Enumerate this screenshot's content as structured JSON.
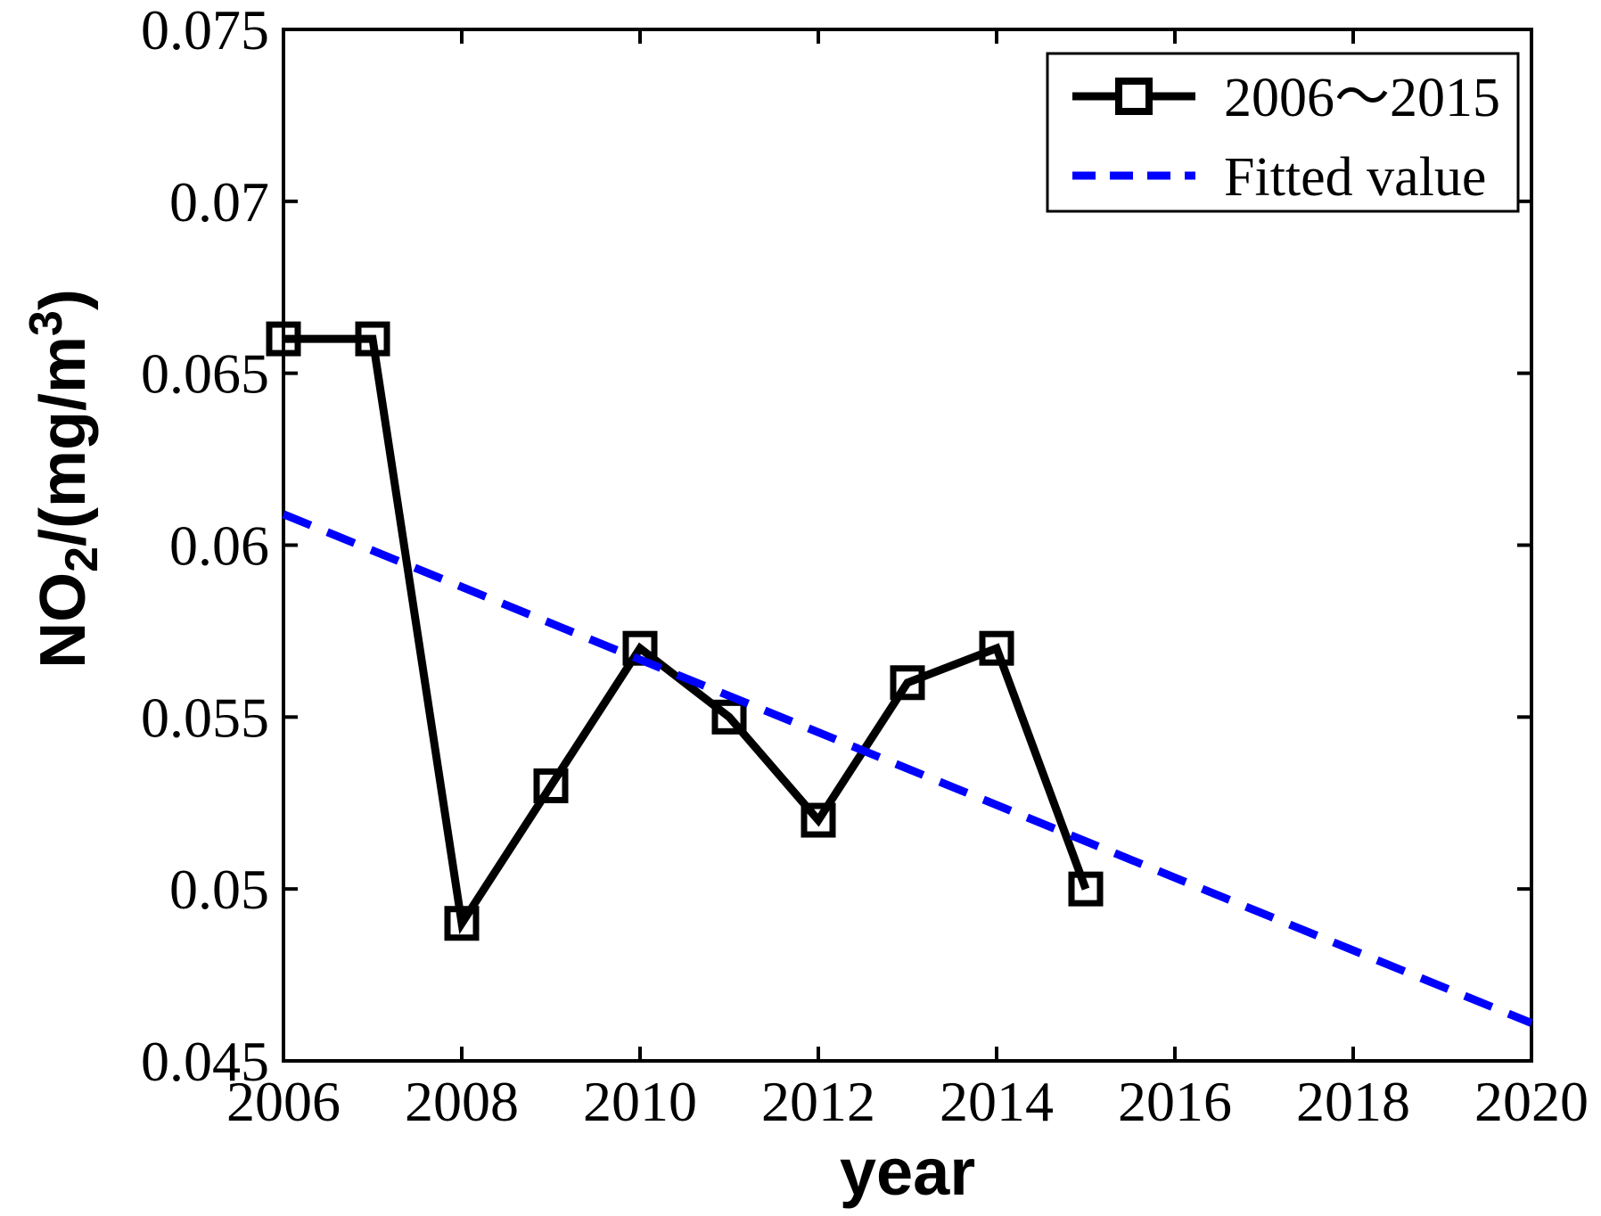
{
  "figure": {
    "background": "#ffffff",
    "axis_color": "#000000"
  },
  "chart_data": {
    "type": "line",
    "title": "",
    "xlabel": "year",
    "ylabel": "NO₂/(mg/m³)",
    "ylabel_parts": {
      "base": "NO",
      "subscript": "2",
      "middle": "/(mg/m",
      "superscript": "3",
      "end": ")"
    },
    "xlim": [
      2006,
      2020
    ],
    "ylim": [
      0.045,
      0.075
    ],
    "xticks": [
      2006,
      2008,
      2010,
      2012,
      2014,
      2016,
      2018,
      2020
    ],
    "xtick_labels": [
      "2006",
      "2008",
      "2010",
      "2012",
      "2014",
      "2016",
      "2018",
      "2020"
    ],
    "yticks": [
      0.045,
      0.05,
      0.055,
      0.06,
      0.065,
      0.07,
      0.075
    ],
    "ytick_labels": [
      "0.045",
      "0.05",
      "0.055",
      "0.06",
      "0.065",
      "0.07",
      "0.075"
    ],
    "grid": false,
    "legend_position": "top-right",
    "series": [
      {
        "name": "2006～2015",
        "kind": "line-with-markers",
        "marker": "open-square",
        "line_style": "solid",
        "color": "#000000",
        "x": [
          2006,
          2007,
          2008,
          2009,
          2010,
          2011,
          2012,
          2013,
          2014,
          2015
        ],
        "values": [
          0.066,
          0.066,
          0.049,
          0.053,
          0.057,
          0.055,
          0.052,
          0.056,
          0.057,
          0.05
        ]
      },
      {
        "name": "Fitted value",
        "kind": "line",
        "marker": "none",
        "line_style": "dashed",
        "color": "#0000ff",
        "x": [
          2006,
          2020
        ],
        "values": [
          0.0609,
          0.0461
        ]
      }
    ]
  }
}
